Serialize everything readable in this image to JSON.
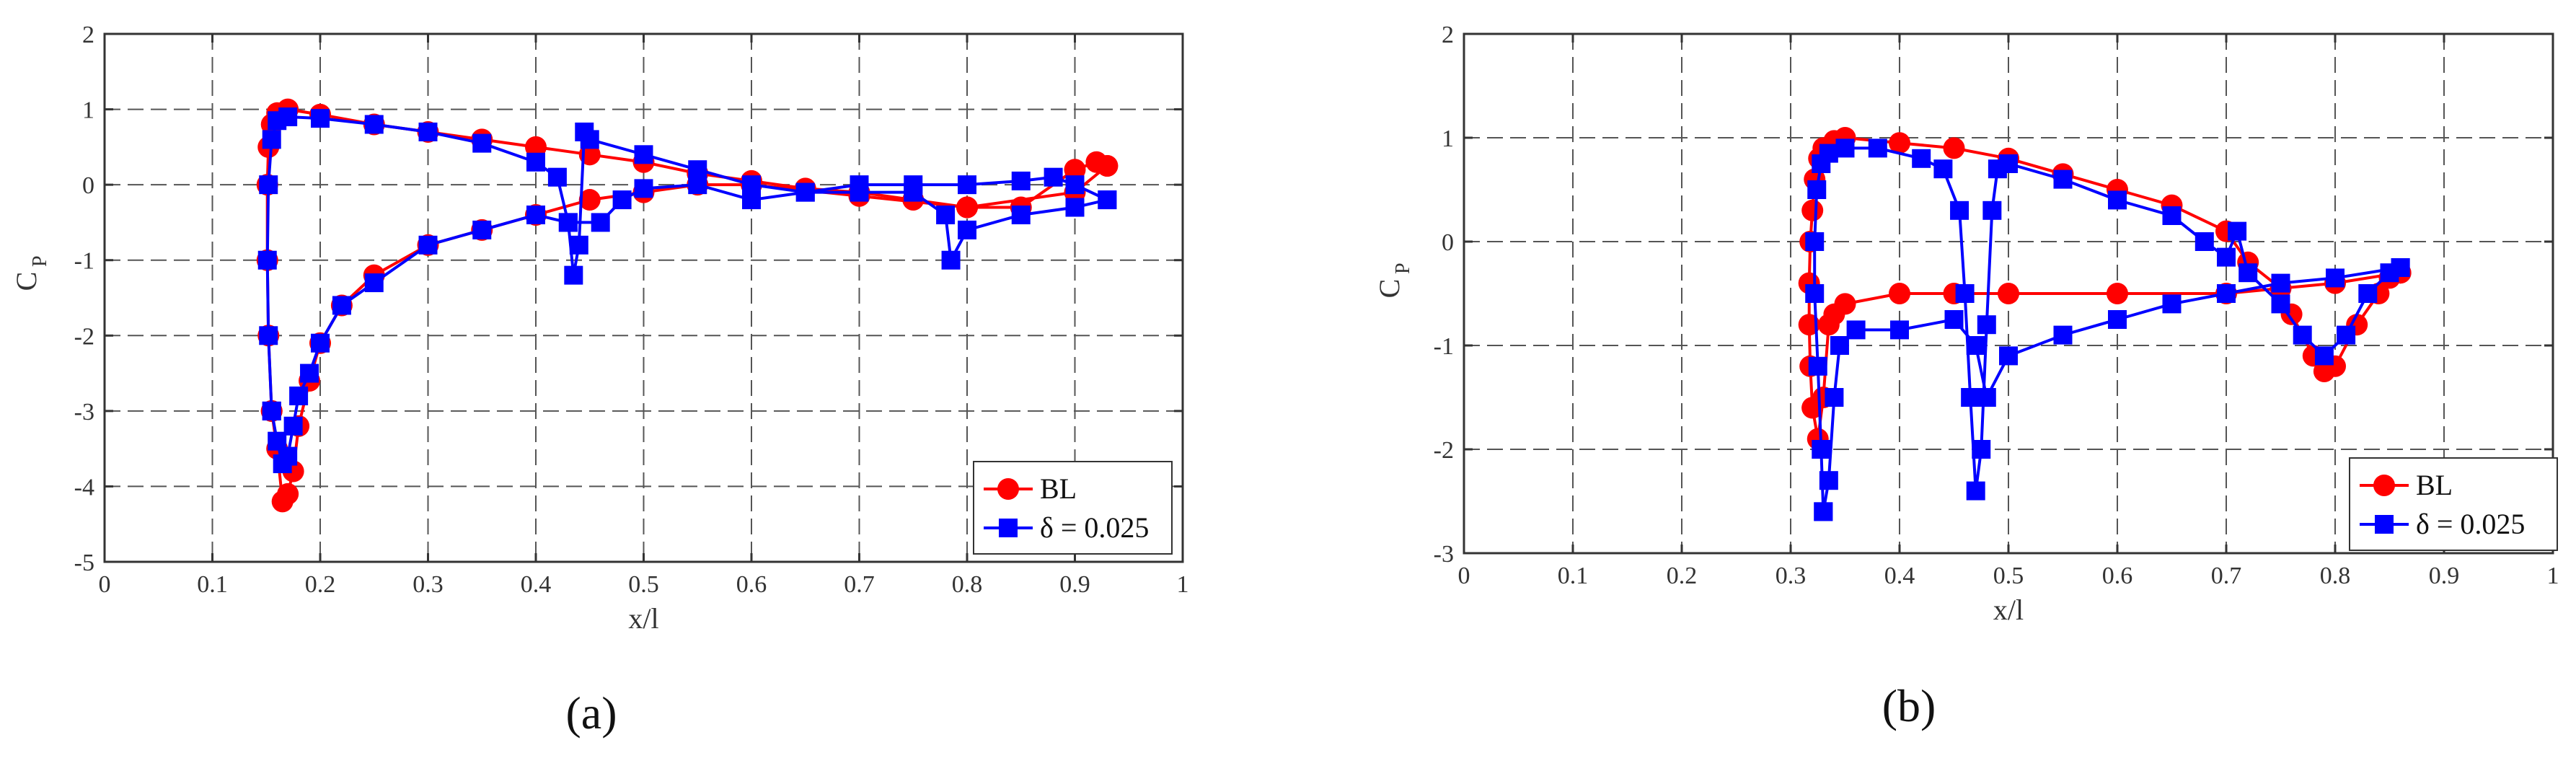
{
  "colors": {
    "bl": "#ff0000",
    "delta": "#0000ff",
    "grid": "#555555",
    "axis": "#333333"
  },
  "chart_data": [
    {
      "type": "line",
      "caption": "(a)",
      "xlabel": "x/l",
      "ylabel_main": "C",
      "ylabel_sub": "P",
      "xlim": [
        0,
        1
      ],
      "ylim": [
        -5,
        2
      ],
      "xticks": [
        "0",
        "0.1",
        "0.2",
        "0.3",
        "0.4",
        "0.5",
        "0.6",
        "0.7",
        "0.8",
        "0.9",
        "1"
      ],
      "yticks": [
        "-5",
        "-4",
        "-3",
        "-2",
        "-1",
        "0",
        "1",
        "2"
      ],
      "grid": true,
      "legend_position": "bottom-right",
      "series": [
        {
          "name": "BL",
          "marker": "circle",
          "upper": [
            [
              0.155,
              -3.0
            ],
            [
              0.152,
              -2.0
            ],
            [
              0.151,
              -1.0
            ],
            [
              0.151,
              0
            ],
            [
              0.152,
              0.5
            ],
            [
              0.155,
              0.8
            ],
            [
              0.16,
              0.95
            ],
            [
              0.17,
              1.0
            ],
            [
              0.2,
              0.93
            ],
            [
              0.25,
              0.8
            ],
            [
              0.3,
              0.7
            ],
            [
              0.35,
              0.6
            ],
            [
              0.4,
              0.5
            ],
            [
              0.45,
              0.4
            ],
            [
              0.5,
              0.3
            ],
            [
              0.55,
              0.15
            ],
            [
              0.6,
              0.05
            ],
            [
              0.65,
              -0.05
            ],
            [
              0.7,
              -0.1
            ],
            [
              0.75,
              -0.2
            ],
            [
              0.8,
              -0.3
            ],
            [
              0.85,
              -0.3
            ],
            [
              0.9,
              0.2
            ],
            [
              0.92,
              0.3
            ],
            [
              0.93,
              0.25
            ]
          ],
          "lower": [
            [
              0.155,
              -3.0
            ],
            [
              0.16,
              -3.5
            ],
            [
              0.165,
              -4.2
            ],
            [
              0.17,
              -4.1
            ],
            [
              0.175,
              -3.8
            ],
            [
              0.18,
              -3.2
            ],
            [
              0.19,
              -2.6
            ],
            [
              0.2,
              -2.1
            ],
            [
              0.22,
              -1.6
            ],
            [
              0.25,
              -1.2
            ],
            [
              0.3,
              -0.8
            ],
            [
              0.35,
              -0.6
            ],
            [
              0.4,
              -0.4
            ],
            [
              0.45,
              -0.2
            ],
            [
              0.5,
              -0.1
            ],
            [
              0.55,
              0
            ],
            [
              0.6,
              0
            ],
            [
              0.7,
              -0.15
            ],
            [
              0.8,
              -0.3
            ],
            [
              0.9,
              -0.1
            ],
            [
              0.93,
              0.25
            ]
          ]
        },
        {
          "name": "δ = 0.025",
          "marker": "square",
          "upper": [
            [
              0.155,
              -3.0
            ],
            [
              0.152,
              -2.0
            ],
            [
              0.151,
              -1.0
            ],
            [
              0.152,
              0
            ],
            [
              0.155,
              0.6
            ],
            [
              0.16,
              0.85
            ],
            [
              0.17,
              0.9
            ],
            [
              0.2,
              0.88
            ],
            [
              0.25,
              0.8
            ],
            [
              0.3,
              0.7
            ],
            [
              0.35,
              0.55
            ],
            [
              0.4,
              0.3
            ],
            [
              0.42,
              0.1
            ],
            [
              0.43,
              -0.5
            ],
            [
              0.435,
              -1.2
            ],
            [
              0.44,
              -0.8
            ],
            [
              0.445,
              0.7
            ],
            [
              0.45,
              0.6
            ],
            [
              0.5,
              0.4
            ],
            [
              0.55,
              0.2
            ],
            [
              0.6,
              0
            ],
            [
              0.65,
              -0.1
            ],
            [
              0.7,
              -0.1
            ],
            [
              0.75,
              -0.1
            ],
            [
              0.78,
              -0.4
            ],
            [
              0.785,
              -1.0
            ],
            [
              0.8,
              -0.6
            ],
            [
              0.85,
              -0.4
            ],
            [
              0.9,
              -0.3
            ],
            [
              0.93,
              -0.2
            ]
          ],
          "lower": [
            [
              0.155,
              -3.0
            ],
            [
              0.16,
              -3.4
            ],
            [
              0.165,
              -3.7
            ],
            [
              0.17,
              -3.6
            ],
            [
              0.175,
              -3.2
            ],
            [
              0.18,
              -2.8
            ],
            [
              0.19,
              -2.5
            ],
            [
              0.2,
              -2.1
            ],
            [
              0.22,
              -1.6
            ],
            [
              0.25,
              -1.3
            ],
            [
              0.3,
              -0.8
            ],
            [
              0.35,
              -0.6
            ],
            [
              0.4,
              -0.4
            ],
            [
              0.43,
              -0.5
            ],
            [
              0.46,
              -0.5
            ],
            [
              0.48,
              -0.2
            ],
            [
              0.5,
              -0.05
            ],
            [
              0.55,
              0
            ],
            [
              0.6,
              -0.2
            ],
            [
              0.65,
              -0.1
            ],
            [
              0.7,
              0
            ],
            [
              0.75,
              0
            ],
            [
              0.8,
              0
            ],
            [
              0.85,
              0.05
            ],
            [
              0.88,
              0.1
            ],
            [
              0.9,
              0
            ],
            [
              0.93,
              -0.2
            ]
          ]
        }
      ]
    },
    {
      "type": "line",
      "caption": "(b)",
      "xlabel": "x/l",
      "ylabel_main": "C",
      "ylabel_sub": "P",
      "xlim": [
        0,
        1
      ],
      "ylim": [
        -3,
        2
      ],
      "xticks": [
        "0",
        "0.1",
        "0.2",
        "0.3",
        "0.4",
        "0.5",
        "0.6",
        "0.7",
        "0.8",
        "0.9",
        "1"
      ],
      "yticks": [
        "-3",
        "-2",
        "-1",
        "0",
        "1",
        "2"
      ],
      "grid": true,
      "legend_position": "bottom-right",
      "series": [
        {
          "name": "BL",
          "marker": "circle",
          "upper": [
            [
              0.32,
              -1.6
            ],
            [
              0.318,
              -1.2
            ],
            [
              0.317,
              -0.8
            ],
            [
              0.317,
              -0.4
            ],
            [
              0.318,
              0
            ],
            [
              0.32,
              0.3
            ],
            [
              0.322,
              0.6
            ],
            [
              0.326,
              0.8
            ],
            [
              0.33,
              0.9
            ],
            [
              0.34,
              0.97
            ],
            [
              0.35,
              1.0
            ],
            [
              0.4,
              0.95
            ],
            [
              0.45,
              0.9
            ],
            [
              0.5,
              0.8
            ],
            [
              0.55,
              0.65
            ],
            [
              0.6,
              0.5
            ],
            [
              0.65,
              0.35
            ],
            [
              0.7,
              0.1
            ],
            [
              0.72,
              -0.2
            ],
            [
              0.75,
              -0.45
            ],
            [
              0.76,
              -0.7
            ],
            [
              0.78,
              -1.1
            ],
            [
              0.79,
              -1.25
            ],
            [
              0.8,
              -1.2
            ],
            [
              0.82,
              -0.8
            ],
            [
              0.84,
              -0.5
            ],
            [
              0.85,
              -0.35
            ],
            [
              0.86,
              -0.3
            ]
          ],
          "lower": [
            [
              0.32,
              -1.6
            ],
            [
              0.325,
              -1.9
            ],
            [
              0.33,
              -1.5
            ],
            [
              0.335,
              -0.8
            ],
            [
              0.34,
              -0.7
            ],
            [
              0.35,
              -0.6
            ],
            [
              0.4,
              -0.5
            ],
            [
              0.45,
              -0.5
            ],
            [
              0.5,
              -0.5
            ],
            [
              0.6,
              -0.5
            ],
            [
              0.7,
              -0.5
            ],
            [
              0.8,
              -0.4
            ],
            [
              0.86,
              -0.3
            ]
          ]
        },
        {
          "name": "δ = 0.025",
          "marker": "square",
          "upper": [
            [
              0.33,
              -2.6
            ],
            [
              0.328,
              -2.0
            ],
            [
              0.325,
              -1.2
            ],
            [
              0.322,
              -0.5
            ],
            [
              0.322,
              0
            ],
            [
              0.324,
              0.5
            ],
            [
              0.328,
              0.75
            ],
            [
              0.335,
              0.85
            ],
            [
              0.35,
              0.9
            ],
            [
              0.38,
              0.9
            ],
            [
              0.42,
              0.8
            ],
            [
              0.44,
              0.7
            ],
            [
              0.455,
              0.3
            ],
            [
              0.46,
              -0.5
            ],
            [
              0.465,
              -1.5
            ],
            [
              0.47,
              -2.4
            ],
            [
              0.475,
              -2.0
            ],
            [
              0.48,
              -0.8
            ],
            [
              0.485,
              0.3
            ],
            [
              0.49,
              0.7
            ],
            [
              0.5,
              0.75
            ],
            [
              0.55,
              0.6
            ],
            [
              0.6,
              0.4
            ],
            [
              0.65,
              0.25
            ],
            [
              0.68,
              0
            ],
            [
              0.7,
              -0.15
            ],
            [
              0.71,
              0.1
            ],
            [
              0.72,
              -0.3
            ],
            [
              0.75,
              -0.6
            ],
            [
              0.77,
              -0.9
            ],
            [
              0.79,
              -1.1
            ],
            [
              0.81,
              -0.9
            ],
            [
              0.83,
              -0.5
            ],
            [
              0.85,
              -0.3
            ],
            [
              0.86,
              -0.25
            ]
          ],
          "lower": [
            [
              0.33,
              -2.6
            ],
            [
              0.335,
              -2.3
            ],
            [
              0.34,
              -1.5
            ],
            [
              0.345,
              -1.0
            ],
            [
              0.36,
              -0.85
            ],
            [
              0.4,
              -0.85
            ],
            [
              0.45,
              -0.75
            ],
            [
              0.47,
              -1.0
            ],
            [
              0.48,
              -1.5
            ],
            [
              0.5,
              -1.1
            ],
            [
              0.55,
              -0.9
            ],
            [
              0.6,
              -0.75
            ],
            [
              0.65,
              -0.6
            ],
            [
              0.7,
              -0.5
            ],
            [
              0.75,
              -0.4
            ],
            [
              0.8,
              -0.35
            ],
            [
              0.86,
              -0.25
            ]
          ]
        }
      ]
    }
  ]
}
